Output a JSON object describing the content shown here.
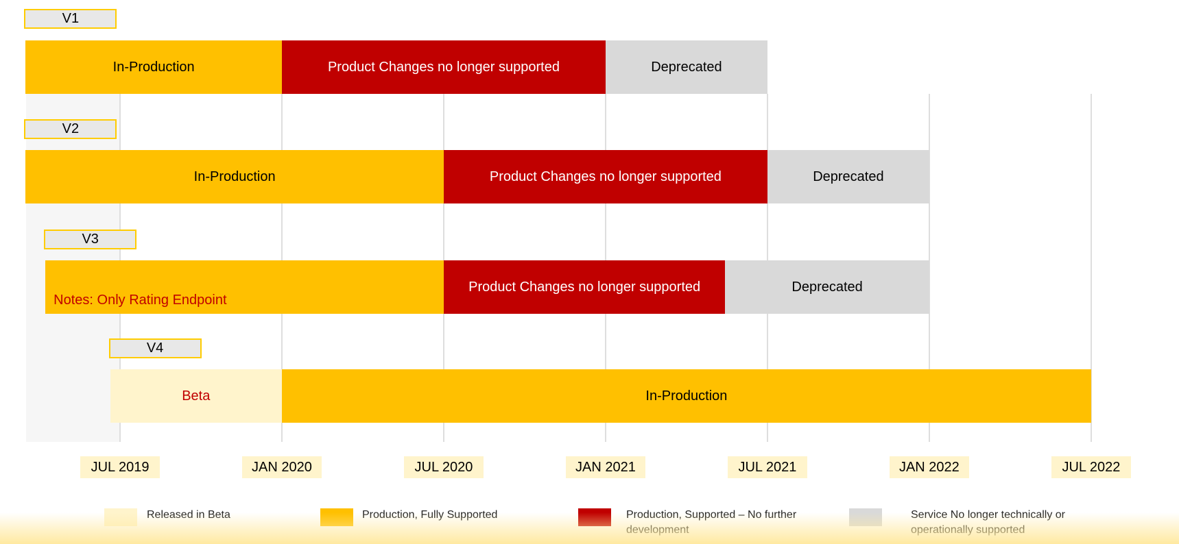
{
  "chart_data": {
    "type": "bar",
    "subtype": "timeline",
    "colors": {
      "beta": "#fff4cc",
      "production": "#ffc000",
      "no_dev": "#c00000",
      "deprecated": "#d9d9d9",
      "note_text": "#c00000",
      "label_border": "#ffcc00"
    },
    "x_ticks": [
      {
        "label": "JUL 2019",
        "date": "2019-07-01"
      },
      {
        "label": "JAN 2020",
        "date": "2020-01-01"
      },
      {
        "label": "JUL 2020",
        "date": "2020-07-01"
      },
      {
        "label": "JAN 2021",
        "date": "2021-01-01"
      },
      {
        "label": "JUL 2021",
        "date": "2021-07-01"
      },
      {
        "label": "JAN 2022",
        "date": "2022-01-01"
      },
      {
        "label": "JUL 2022",
        "date": "2022-07-01"
      }
    ],
    "rows": [
      {
        "version": "V1",
        "note": "",
        "segments": [
          {
            "label": "In-Production",
            "status": "production",
            "start": "2019-03-16",
            "end": "2020-01-01"
          },
          {
            "label": "Product Changes no longer supported",
            "status": "no_dev",
            "start": "2020-01-01",
            "end": "2021-01-01"
          },
          {
            "label": "Deprecated",
            "status": "deprecated",
            "start": "2021-01-01",
            "end": "2021-07-01"
          }
        ]
      },
      {
        "version": "V2",
        "note": "",
        "segments": [
          {
            "label": "In-Production",
            "status": "production",
            "start": "2019-03-16",
            "end": "2020-07-01"
          },
          {
            "label": "Product Changes no longer supported",
            "status": "no_dev",
            "start": "2020-07-01",
            "end": "2021-07-01"
          },
          {
            "label": "Deprecated",
            "status": "deprecated",
            "start": "2021-07-01",
            "end": "2022-01-01"
          }
        ]
      },
      {
        "version": "V3",
        "note": "Notes: Only Rating Endpoint",
        "segments": [
          {
            "label": "",
            "status": "production",
            "start": "2019-04-08",
            "end": "2020-07-01"
          },
          {
            "label": "Product Changes no longer supported",
            "status": "no_dev",
            "start": "2020-07-01",
            "end": "2021-05-14"
          },
          {
            "label": "Deprecated",
            "status": "deprecated",
            "start": "2021-05-14",
            "end": "2022-01-01"
          }
        ]
      },
      {
        "version": "V4",
        "note": "",
        "segments": [
          {
            "label": "Beta",
            "status": "beta",
            "start": "2019-06-20",
            "end": "2020-01-01"
          },
          {
            "label": "In-Production",
            "status": "production",
            "start": "2020-01-01",
            "end": "2022-07-01"
          }
        ]
      }
    ],
    "legend": [
      {
        "status": "beta",
        "label": "Released in Beta"
      },
      {
        "status": "production",
        "label": "Production, Fully Supported"
      },
      {
        "status": "no_dev",
        "label": "Production, Supported – No further development"
      },
      {
        "status": "deprecated",
        "label": "Service No longer technically or operationally supported"
      }
    ],
    "legend_position": "bottom",
    "grid": true
  }
}
